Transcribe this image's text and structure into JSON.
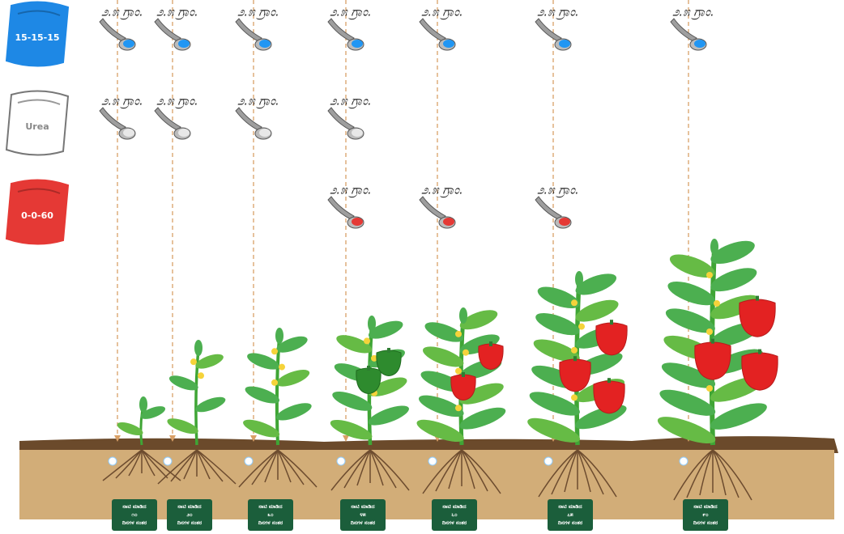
{
  "bags": [
    {
      "label": "15-15-15"
    },
    {
      "label": "Urea"
    },
    {
      "label": "0-0-60"
    }
  ],
  "stages": [
    {
      "doses": [
        "೨.೫ ಗ್ರಾಂ.",
        "೨.೫ ಗ್ರಾಂ.",
        null
      ],
      "lines": [
        "ನಾಟಿ ಮಾಡಿದ",
        "೧೦",
        "ದಿನಗಳ ನಂತರ"
      ]
    },
    {
      "doses": [
        "೨.೫ ಗ್ರಾಂ.",
        "೨.೫ ಗ್ರಾಂ.",
        null
      ],
      "lines": [
        "ನಾಟಿ ಮಾಡಿದ",
        "೨೦",
        "ದಿನಗಳ ನಂತರ"
      ]
    },
    {
      "doses": [
        "೨.೫ ಗ್ರಾಂ.",
        "೨.೫ ಗ್ರಾಂ.",
        null
      ],
      "lines": [
        "ನಾಟಿ ಮಾಡಿದ",
        "೩೦",
        "ದಿನಗಳ ನಂತರ"
      ]
    },
    {
      "doses": [
        "೨.೫ ಗ್ರಾಂ.",
        "೨.೫ ಗ್ರಾಂ.",
        "೨.೫ ಗ್ರಾಂ."
      ],
      "lines": [
        "ನಾಟಿ ಮಾಡಿದ",
        "೪೫",
        "ದಿನಗಳ ನಂತರ"
      ]
    },
    {
      "doses": [
        "೨.೫ ಗ್ರಾಂ.",
        null,
        "೨.೫ ಗ್ರಾಂ."
      ],
      "lines": [
        "ನಾಟಿ ಮಾಡಿದ",
        "೬೦",
        "ದಿನಗಳ ನಂತರ"
      ]
    },
    {
      "doses": [
        "೨.೫ ಗ್ರಾಂ.",
        null,
        "೨.೫ ಗ್ರಾಂ."
      ],
      "lines": [
        "ನಾಟಿ ಮಾಡಿದ",
        "೭೫",
        "ದಿನಗಳ ನಂತರ"
      ]
    },
    {
      "doses": [
        "೨.೫ ಗ್ರಾಂ.",
        null,
        null
      ],
      "lines": [
        "ನಾಟಿ ಮಾಡಿದ",
        "೯೦",
        "ದಿನಗಳ ನಂತರ"
      ]
    }
  ]
}
